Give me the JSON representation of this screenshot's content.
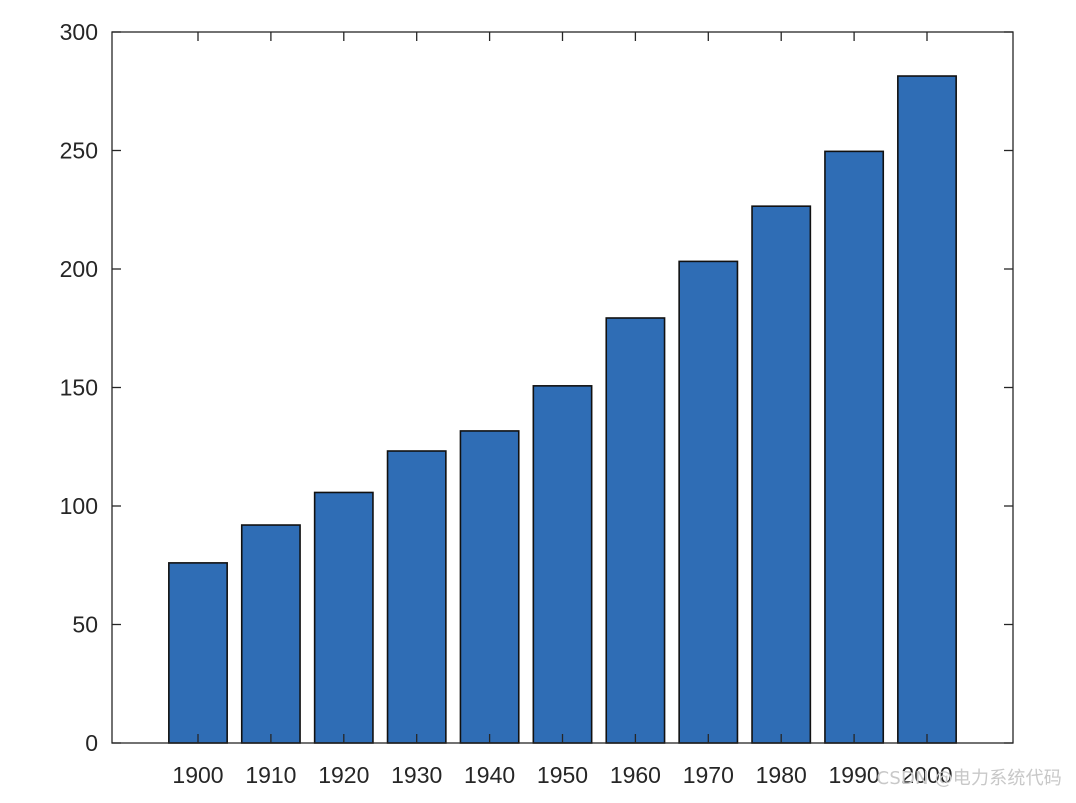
{
  "chart_data": {
    "type": "bar",
    "title": "",
    "xlabel": "",
    "ylabel": "",
    "categories": [
      "1900",
      "1910",
      "1920",
      "1930",
      "1940",
      "1950",
      "1960",
      "1970",
      "1980",
      "1990",
      "2000"
    ],
    "values": [
      75.995,
      91.972,
      105.711,
      123.203,
      131.669,
      150.697,
      179.323,
      203.212,
      226.505,
      249.633,
      281.422
    ],
    "ylim": [
      0,
      300
    ],
    "yticks": [
      0,
      50,
      100,
      150,
      200,
      250,
      300
    ],
    "grid": false,
    "legend": "none",
    "colors": {
      "bar_fill": "#2f6db5",
      "bar_stroke": "#111111",
      "axis": "#262626",
      "tick_label": "#262626"
    }
  },
  "watermark": {
    "text": "CSDN @电力系统代码"
  }
}
